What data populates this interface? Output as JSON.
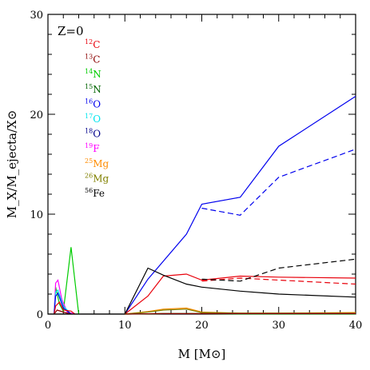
{
  "chart_data": {
    "type": "line",
    "panel_label": "Z=0",
    "xlabel": "M [M⊙]",
    "ylabel": "M_X/M_ejecta/X⊙",
    "xlim": [
      0,
      40
    ],
    "ylim": [
      0,
      30
    ],
    "x_ticks": [
      0,
      10,
      20,
      30,
      40
    ],
    "y_ticks": [
      0,
      10,
      20,
      30
    ],
    "legend_position": "top-left",
    "legend": [
      {
        "sup": "12",
        "el": "C",
        "color": "#e8000b"
      },
      {
        "sup": "13",
        "el": "C",
        "color": "#8b0000"
      },
      {
        "sup": "14",
        "el": "N",
        "color": "#00cc00"
      },
      {
        "sup": "15",
        "el": "N",
        "color": "#006400"
      },
      {
        "sup": "16",
        "el": "O",
        "color": "#0000ee"
      },
      {
        "sup": "17",
        "el": "O",
        "color": "#00e5ee"
      },
      {
        "sup": "18",
        "el": "O",
        "color": "#00008b"
      },
      {
        "sup": "19",
        "el": "F",
        "color": "#ff00ff"
      },
      {
        "sup": "25",
        "el": "Mg",
        "color": "#ff8c00"
      },
      {
        "sup": "26",
        "el": "Mg",
        "color": "#808000"
      },
      {
        "sup": "56",
        "el": "Fe",
        "color": "#000000"
      }
    ],
    "series": [
      {
        "color": "#0000ee",
        "dash": false,
        "x": [
          10,
          13,
          18,
          20,
          25,
          30,
          40
        ],
        "y": [
          0,
          3.5,
          8.0,
          11.0,
          11.7,
          16.8,
          21.8
        ]
      },
      {
        "color": "#0000ee",
        "dash": true,
        "x": [
          20,
          25,
          30,
          40
        ],
        "y": [
          10.6,
          9.9,
          13.7,
          16.5
        ]
      },
      {
        "color": "#e8000b",
        "dash": false,
        "x": [
          10,
          13,
          15,
          18,
          20,
          25,
          30,
          40
        ],
        "y": [
          0,
          1.8,
          3.8,
          4.0,
          3.4,
          3.8,
          3.7,
          3.6
        ]
      },
      {
        "color": "#e8000b",
        "dash": true,
        "x": [
          20,
          25,
          30,
          40
        ],
        "y": [
          3.3,
          3.6,
          3.4,
          3.0
        ]
      },
      {
        "color": "#000000",
        "dash": false,
        "x": [
          10,
          13,
          15,
          18,
          20,
          25,
          30,
          40
        ],
        "y": [
          0,
          4.6,
          3.9,
          3.0,
          2.7,
          2.3,
          2.0,
          1.7
        ]
      },
      {
        "color": "#000000",
        "dash": true,
        "x": [
          20,
          25,
          30,
          40
        ],
        "y": [
          3.5,
          3.3,
          4.6,
          5.5
        ]
      },
      {
        "color": "#ff8c00",
        "dash": false,
        "x": [
          10,
          13,
          15,
          18,
          20,
          25,
          30,
          40
        ],
        "y": [
          0,
          0.25,
          0.5,
          0.6,
          0.2,
          0.1,
          0.1,
          0.15
        ]
      },
      {
        "color": "#808000",
        "dash": false,
        "x": [
          10,
          13,
          15,
          18,
          20,
          25,
          30,
          40
        ],
        "y": [
          0,
          0.2,
          0.4,
          0.5,
          0.15,
          0.1,
          0.1,
          0.1
        ]
      },
      {
        "color": "#00cc00",
        "dash": false,
        "x": [
          10,
          15,
          20,
          25,
          30,
          40
        ],
        "y": [
          0,
          0.05,
          0.05,
          0.02,
          0.02,
          0.02
        ]
      },
      {
        "color": "#8b0000",
        "dash": false,
        "x": [
          10,
          15,
          20,
          30,
          40
        ],
        "y": [
          0,
          0.05,
          0.05,
          0.05,
          0.05
        ]
      },
      {
        "color": "#00cc00",
        "dash": false,
        "x": [
          0.8,
          1.0,
          1.5,
          2.0,
          3.0,
          4.0
        ],
        "y": [
          0,
          2.7,
          1.0,
          0.3,
          6.7,
          0
        ]
      },
      {
        "color": "#ff00ff",
        "dash": false,
        "x": [
          0.8,
          1.0,
          1.3,
          1.8,
          2.5,
          3.5
        ],
        "y": [
          0,
          3.1,
          3.4,
          1.5,
          0.2,
          0
        ]
      },
      {
        "color": "#00e5ee",
        "dash": false,
        "x": [
          0.8,
          1.0,
          1.3,
          2.0,
          3.0
        ],
        "y": [
          0,
          2.2,
          2.4,
          0.8,
          0
        ]
      },
      {
        "color": "#0000ee",
        "dash": false,
        "x": [
          0.8,
          1.0,
          1.3,
          2.0,
          3.0
        ],
        "y": [
          0,
          1.8,
          2.1,
          0.6,
          0
        ]
      },
      {
        "color": "#e8000b",
        "dash": false,
        "x": [
          0.8,
          1.0,
          1.5,
          2.0,
          3.0,
          3.5
        ],
        "y": [
          0,
          0.8,
          1.2,
          0.4,
          0.3,
          0
        ]
      },
      {
        "color": "#8b0000",
        "dash": false,
        "x": [
          0.8,
          1.2,
          2.0,
          3.0
        ],
        "y": [
          0,
          0.4,
          0.2,
          0
        ]
      },
      {
        "color": "#000000",
        "dash": false,
        "x": [
          0,
          0.8,
          3.5,
          10
        ],
        "y": [
          0,
          0,
          0,
          0
        ]
      }
    ]
  }
}
